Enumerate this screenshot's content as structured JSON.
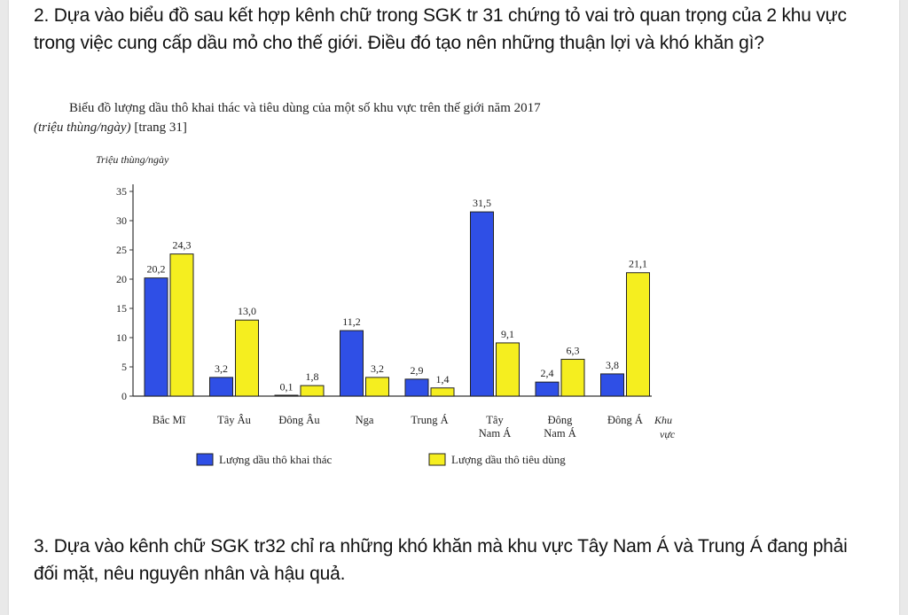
{
  "question2": "2. Dựa vào biểu đồ sau kết hợp kênh chữ trong SGK tr 31 chứng tỏ vai trò quan trọng của 2 khu vực trong việc cung cấp dầu mỏ cho thế giới. Điều đó tạo nên những thuận lợi và khó khăn gì?",
  "question3": "3. Dựa vào kênh chữ SGK tr32 chỉ ra những khó khăn mà khu vực Tây Nam Á và Trung Á đang phải đối mặt, nêu nguyên nhân và hậu quả.",
  "caption": {
    "title": "Biểu đồ lượng dầu thô khai thác và tiêu dùng của một số khu vực trên thế giới năm 2017",
    "unit": "(triệu thùng/ngày)",
    "page_ref": "[trang 31]"
  },
  "chart_data": {
    "type": "bar",
    "ylabel": "Triệu thùng/ngày",
    "xlabel": [
      "Khu",
      "vực"
    ],
    "ylim": [
      0,
      35
    ],
    "yticks": [
      0,
      5,
      10,
      15,
      20,
      25,
      30,
      35
    ],
    "categories": [
      [
        "Bắc Mĩ"
      ],
      [
        "Tây Âu"
      ],
      [
        "Đông Âu"
      ],
      [
        "Nga"
      ],
      [
        "Trung Á"
      ],
      [
        "Tây",
        "Nam Á"
      ],
      [
        "Đông",
        "Nam Á"
      ],
      [
        "Đông Á"
      ]
    ],
    "series": [
      {
        "name": "Lượng dầu thô khai thác",
        "color": "#2f4fe6",
        "values": [
          20.2,
          3.2,
          0.1,
          11.2,
          2.9,
          31.5,
          2.4,
          3.8
        ],
        "labels": [
          "20,2",
          "3,2",
          "0,1",
          "11,2",
          "2,9",
          "31,5",
          "2,4",
          "3,8"
        ]
      },
      {
        "name": "Lượng dầu thô tiêu dùng",
        "color": "#f5ee1f",
        "values": [
          24.3,
          13.0,
          1.8,
          3.2,
          1.4,
          9.1,
          6.3,
          21.1
        ],
        "labels": [
          "24,3",
          "13,0",
          "1,8",
          "3,2",
          "1,4",
          "9,1",
          "6,3",
          "21,1"
        ]
      }
    ],
    "legend_position": "bottom"
  }
}
